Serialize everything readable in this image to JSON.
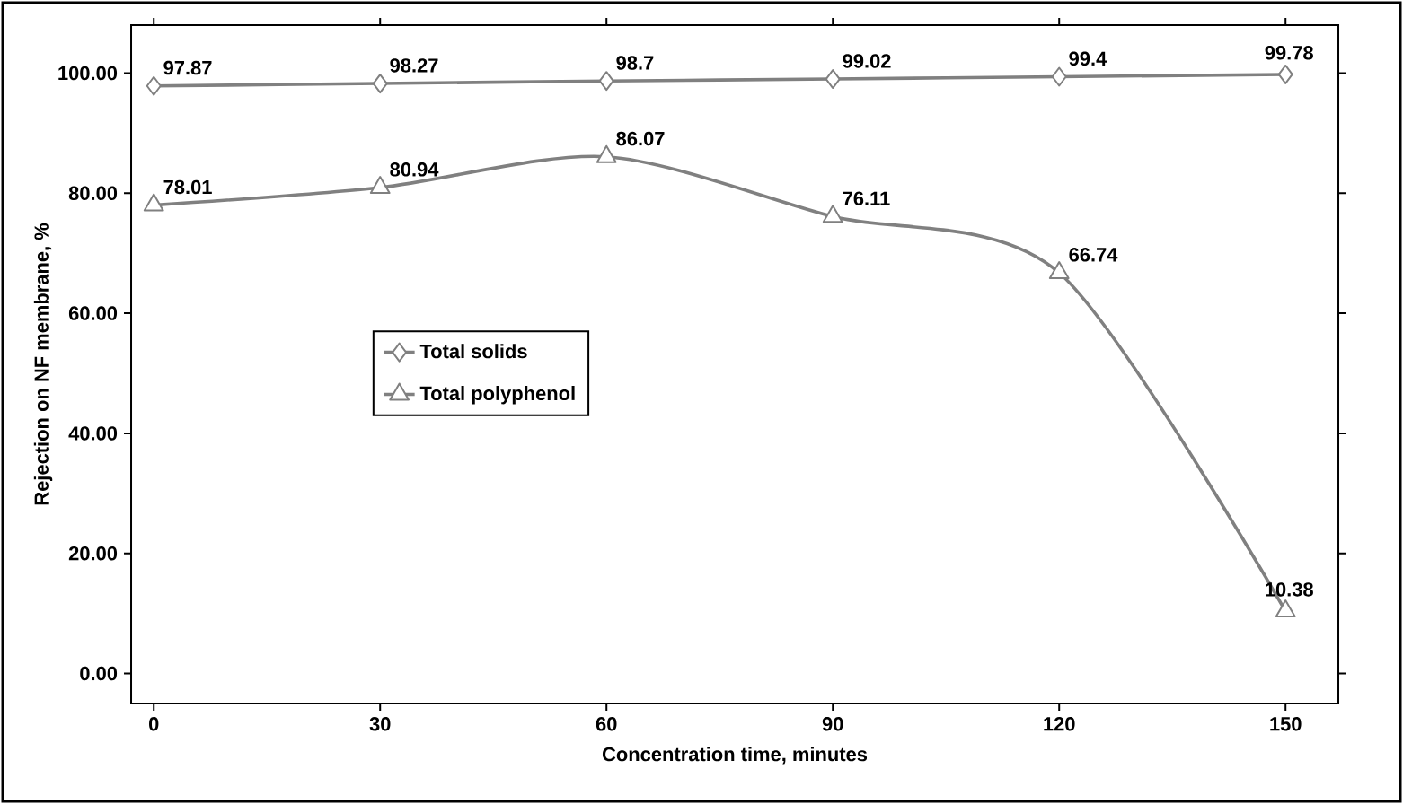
{
  "chart_data": {
    "type": "line",
    "xlabel": "Concentration time, minutes",
    "ylabel": "Rejection on NF membrane, %",
    "x": [
      0,
      30,
      60,
      90,
      120,
      150
    ],
    "series": [
      {
        "name": "Total solids",
        "color": "#808080",
        "marker": "diamond",
        "values": [
          97.87,
          98.27,
          98.7,
          99.02,
          99.4,
          99.78
        ]
      },
      {
        "name": "Total polyphenol",
        "color": "#808080",
        "marker": "triangle",
        "values": [
          78.01,
          80.94,
          86.07,
          76.11,
          66.74,
          10.38
        ]
      }
    ],
    "xlim": [
      -3,
      157
    ],
    "xticks": [
      0,
      30,
      60,
      90,
      120,
      150
    ],
    "ylim": [
      -5,
      108
    ],
    "yticks": [
      {
        "value": 0,
        "label": "0.00"
      },
      {
        "value": 20,
        "label": "20.00"
      },
      {
        "value": 40,
        "label": "40.00"
      },
      {
        "value": 60,
        "label": "60.00"
      },
      {
        "value": 80,
        "label": "80.00"
      },
      {
        "value": 100,
        "label": "100.00"
      }
    ],
    "data_labels": true,
    "legend": "center left",
    "grid": false
  }
}
